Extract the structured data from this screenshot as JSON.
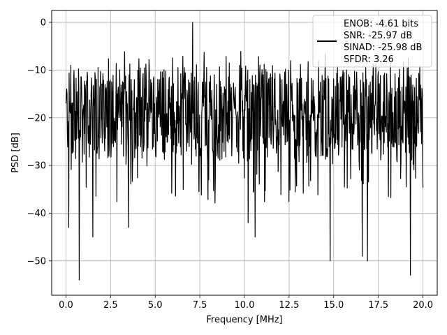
{
  "chart_data": {
    "type": "line",
    "title": "",
    "xlabel": "Frequency [MHz]",
    "ylabel": "PSD [dB]",
    "xlim": [
      -0.8,
      20.8
    ],
    "ylim": [
      -57.2,
      2.5
    ],
    "xticks": [
      0.0,
      2.5,
      5.0,
      7.5,
      10.0,
      12.5,
      15.0,
      17.5,
      20.0
    ],
    "xtick_labels": [
      "0.0",
      "2.5",
      "5.0",
      "7.5",
      "10.0",
      "12.5",
      "15.0",
      "17.5",
      "20.0"
    ],
    "yticks": [
      0,
      -10,
      -20,
      -30,
      -40,
      -50
    ],
    "ytick_labels": [
      "0",
      "−10",
      "−20",
      "−30",
      "−40",
      "−50"
    ],
    "grid": true,
    "legend_position": "top-right",
    "series": [
      {
        "name": "",
        "color": "#000000",
        "x_start": 0.0,
        "x_end": 20.0,
        "points": 1024,
        "typical_range": [
          -28,
          -10
        ],
        "approx_peak": {
          "x": 7.1,
          "y": 0
        },
        "deep_dips": [
          {
            "x": 0.15,
            "y": -43
          },
          {
            "x": 0.75,
            "y": -54
          },
          {
            "x": 1.5,
            "y": -45
          },
          {
            "x": 3.5,
            "y": -43
          },
          {
            "x": 10.2,
            "y": -42
          },
          {
            "x": 10.6,
            "y": -45
          },
          {
            "x": 14.8,
            "y": -50
          },
          {
            "x": 16.6,
            "y": -49
          },
          {
            "x": 16.9,
            "y": -50
          },
          {
            "x": 19.3,
            "y": -53
          }
        ]
      }
    ],
    "legend_entries": [
      "ENOB: -4.61 bits",
      "SNR: -25.97 dB",
      "SINAD: -25.98 dB",
      "SFDR: 3.26"
    ]
  }
}
